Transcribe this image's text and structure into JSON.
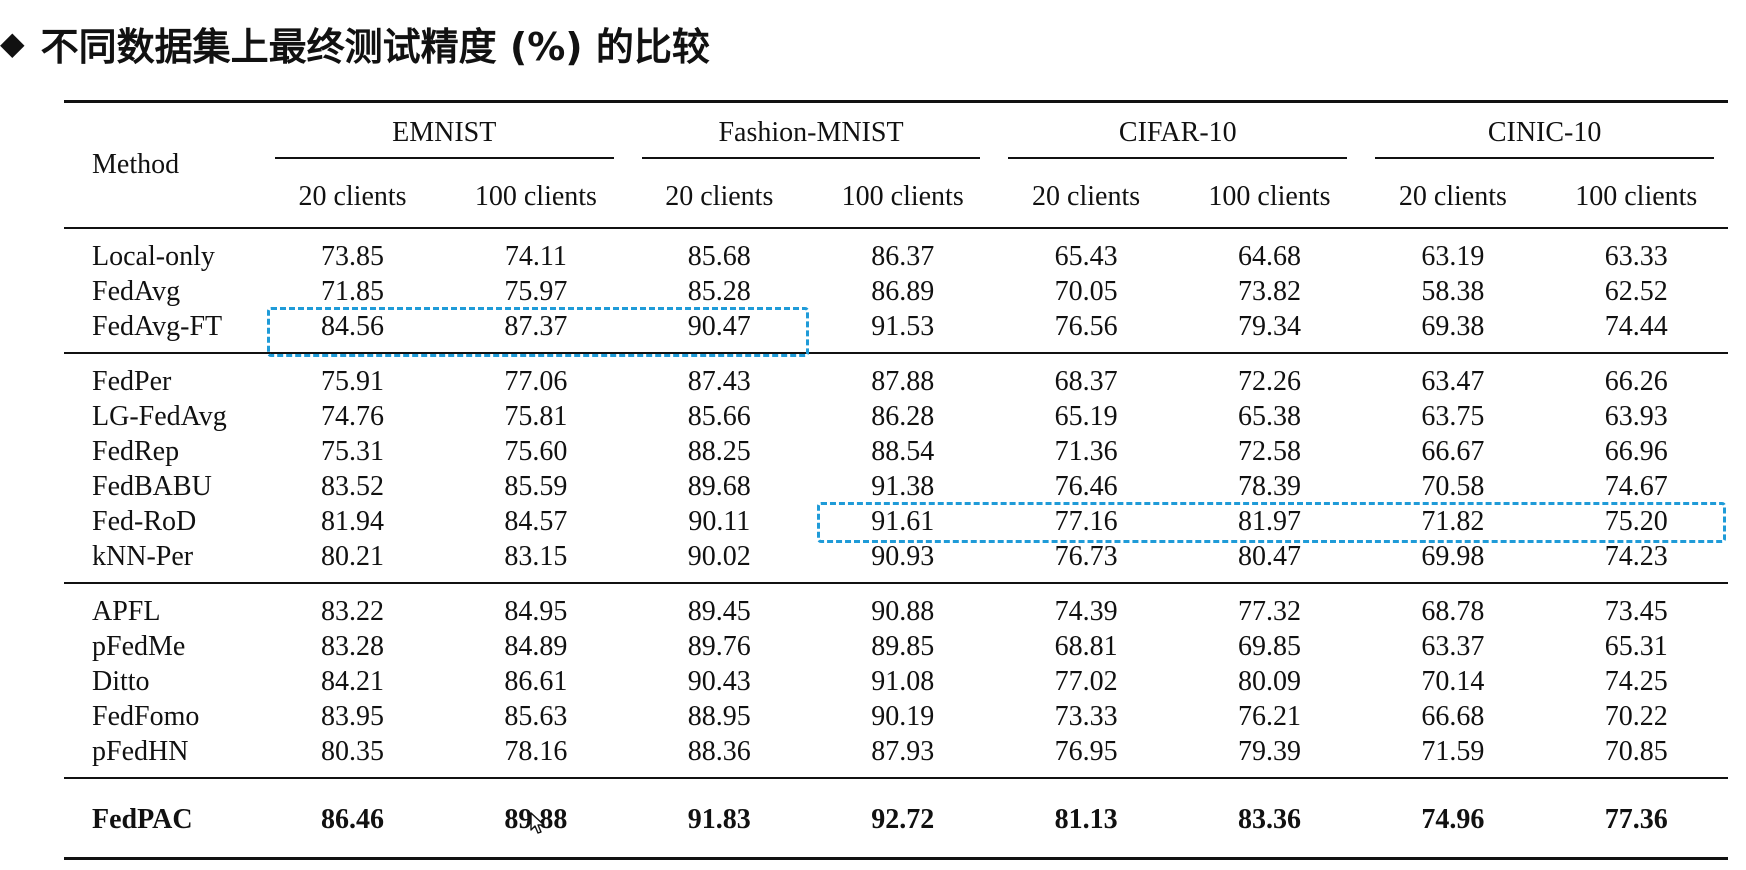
{
  "title": {
    "bullet": "◆",
    "text": "不同数据集上最终测试精度 (%) 的比较"
  },
  "table": {
    "method_header": "Method",
    "datasets": [
      {
        "name": "EMNIST",
        "sub": [
          "20 clients",
          "100 clients"
        ]
      },
      {
        "name": "Fashion-MNIST",
        "sub": [
          "20 clients",
          "100 clients"
        ]
      },
      {
        "name": "CIFAR-10",
        "sub": [
          "20 clients",
          "100 clients"
        ]
      },
      {
        "name": "CINIC-10",
        "sub": [
          "20 clients",
          "100 clients"
        ]
      }
    ],
    "groups": [
      [
        {
          "method": "Local-only",
          "values": [
            "73.85",
            "74.11",
            "85.68",
            "86.37",
            "65.43",
            "64.68",
            "63.19",
            "63.33"
          ]
        },
        {
          "method": "FedAvg",
          "values": [
            "71.85",
            "75.97",
            "85.28",
            "86.89",
            "70.05",
            "73.82",
            "58.38",
            "62.52"
          ]
        },
        {
          "method": "FedAvg-FT",
          "values": [
            "84.56",
            "87.37",
            "90.47",
            "91.53",
            "76.56",
            "79.34",
            "69.38",
            "74.44"
          ]
        }
      ],
      [
        {
          "method": "FedPer",
          "values": [
            "75.91",
            "77.06",
            "87.43",
            "87.88",
            "68.37",
            "72.26",
            "63.47",
            "66.26"
          ]
        },
        {
          "method": "LG-FedAvg",
          "values": [
            "74.76",
            "75.81",
            "85.66",
            "86.28",
            "65.19",
            "65.38",
            "63.75",
            "63.93"
          ]
        },
        {
          "method": "FedRep",
          "values": [
            "75.31",
            "75.60",
            "88.25",
            "88.54",
            "71.36",
            "72.58",
            "66.67",
            "66.96"
          ]
        },
        {
          "method": "FedBABU",
          "values": [
            "83.52",
            "85.59",
            "89.68",
            "91.38",
            "76.46",
            "78.39",
            "70.58",
            "74.67"
          ]
        },
        {
          "method": "Fed-RoD",
          "values": [
            "81.94",
            "84.57",
            "90.11",
            "91.61",
            "77.16",
            "81.97",
            "71.82",
            "75.20"
          ]
        },
        {
          "method": "kNN-Per",
          "values": [
            "80.21",
            "83.15",
            "90.02",
            "90.93",
            "76.73",
            "80.47",
            "69.98",
            "74.23"
          ]
        }
      ],
      [
        {
          "method": "APFL",
          "values": [
            "83.22",
            "84.95",
            "89.45",
            "90.88",
            "74.39",
            "77.32",
            "68.78",
            "73.45"
          ]
        },
        {
          "method": "pFedMe",
          "values": [
            "83.28",
            "84.89",
            "89.76",
            "89.85",
            "68.81",
            "69.85",
            "63.37",
            "65.31"
          ]
        },
        {
          "method": "Ditto",
          "values": [
            "84.21",
            "86.61",
            "90.43",
            "91.08",
            "77.02",
            "80.09",
            "70.14",
            "74.25"
          ]
        },
        {
          "method": "FedFomo",
          "values": [
            "83.95",
            "85.63",
            "88.95",
            "90.19",
            "73.33",
            "76.21",
            "66.68",
            "70.22"
          ]
        },
        {
          "method": "pFedHN",
          "values": [
            "80.35",
            "78.16",
            "88.36",
            "87.93",
            "76.95",
            "79.39",
            "71.59",
            "70.85"
          ]
        }
      ],
      [
        {
          "method": "FedPAC",
          "values": [
            "86.46",
            "89.88",
            "91.83",
            "92.72",
            "81.13",
            "83.36",
            "74.96",
            "77.36"
          ]
        }
      ]
    ]
  },
  "highlights": [
    {
      "method": "FedAvg-FT",
      "columns": "EMNIST 20 clients – Fashion-MNIST 20 clients",
      "color": "#1f9bd8"
    },
    {
      "method": "Fed-RoD",
      "columns": "Fashion-MNIST 100 clients – CINIC-10 100 clients",
      "color": "#1f9bd8"
    }
  ],
  "cursor": {
    "icon": "mouse-pointer-icon"
  }
}
